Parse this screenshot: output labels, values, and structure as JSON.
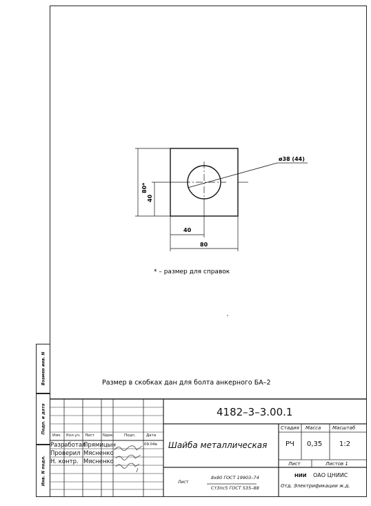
{
  "drawing": {
    "dim_diameter": "ø38 (44)",
    "dim_height_total": "80*",
    "dim_height_half": "40",
    "dim_width_half": "40",
    "dim_width_total": "80",
    "reference_note": "* – размер для справок",
    "bolt_note": "Размер в скобках дан для болта анкерного БА–2"
  },
  "side_strip": {
    "inv_sub": "Взамен инв. N",
    "sign_date": "Подп. и дата",
    "inv_orig": "Инв. N подл."
  },
  "title_block": {
    "doc_code": "4182–3–3.00.1",
    "part_name": "Шайба металлическая",
    "col_headers": [
      "Изм.",
      "Кол.уч.",
      "Лист",
      "Nдок.",
      "Подп.",
      "Дата"
    ],
    "rows": [
      {
        "role": "Разработал",
        "name": "Прямицын",
        "date": "09.04в"
      },
      {
        "role": "Проверил",
        "name": "Мясненко",
        "date": ""
      },
      {
        "role": "Н. контр.",
        "name": "Мясненко",
        "date": ""
      }
    ],
    "stage_label": "Стадия",
    "mass_label": "Масса",
    "scale_label": "Масштаб",
    "stage_value": "РЧ",
    "mass_value": "0,35",
    "scale_value": "1:2",
    "sheet_label": "Лист",
    "sheets_label": "Листов 1",
    "material_sheet_label": "Лист",
    "material_top": "8х80 ГОСТ 19903–74",
    "material_bottom": "Ст3пс5 ГОСТ 535–88",
    "org_logo_text": "НИИ",
    "org_name": "ОАО ЦНИИС",
    "org_dept": "Отд. Электрификации ж.д."
  }
}
